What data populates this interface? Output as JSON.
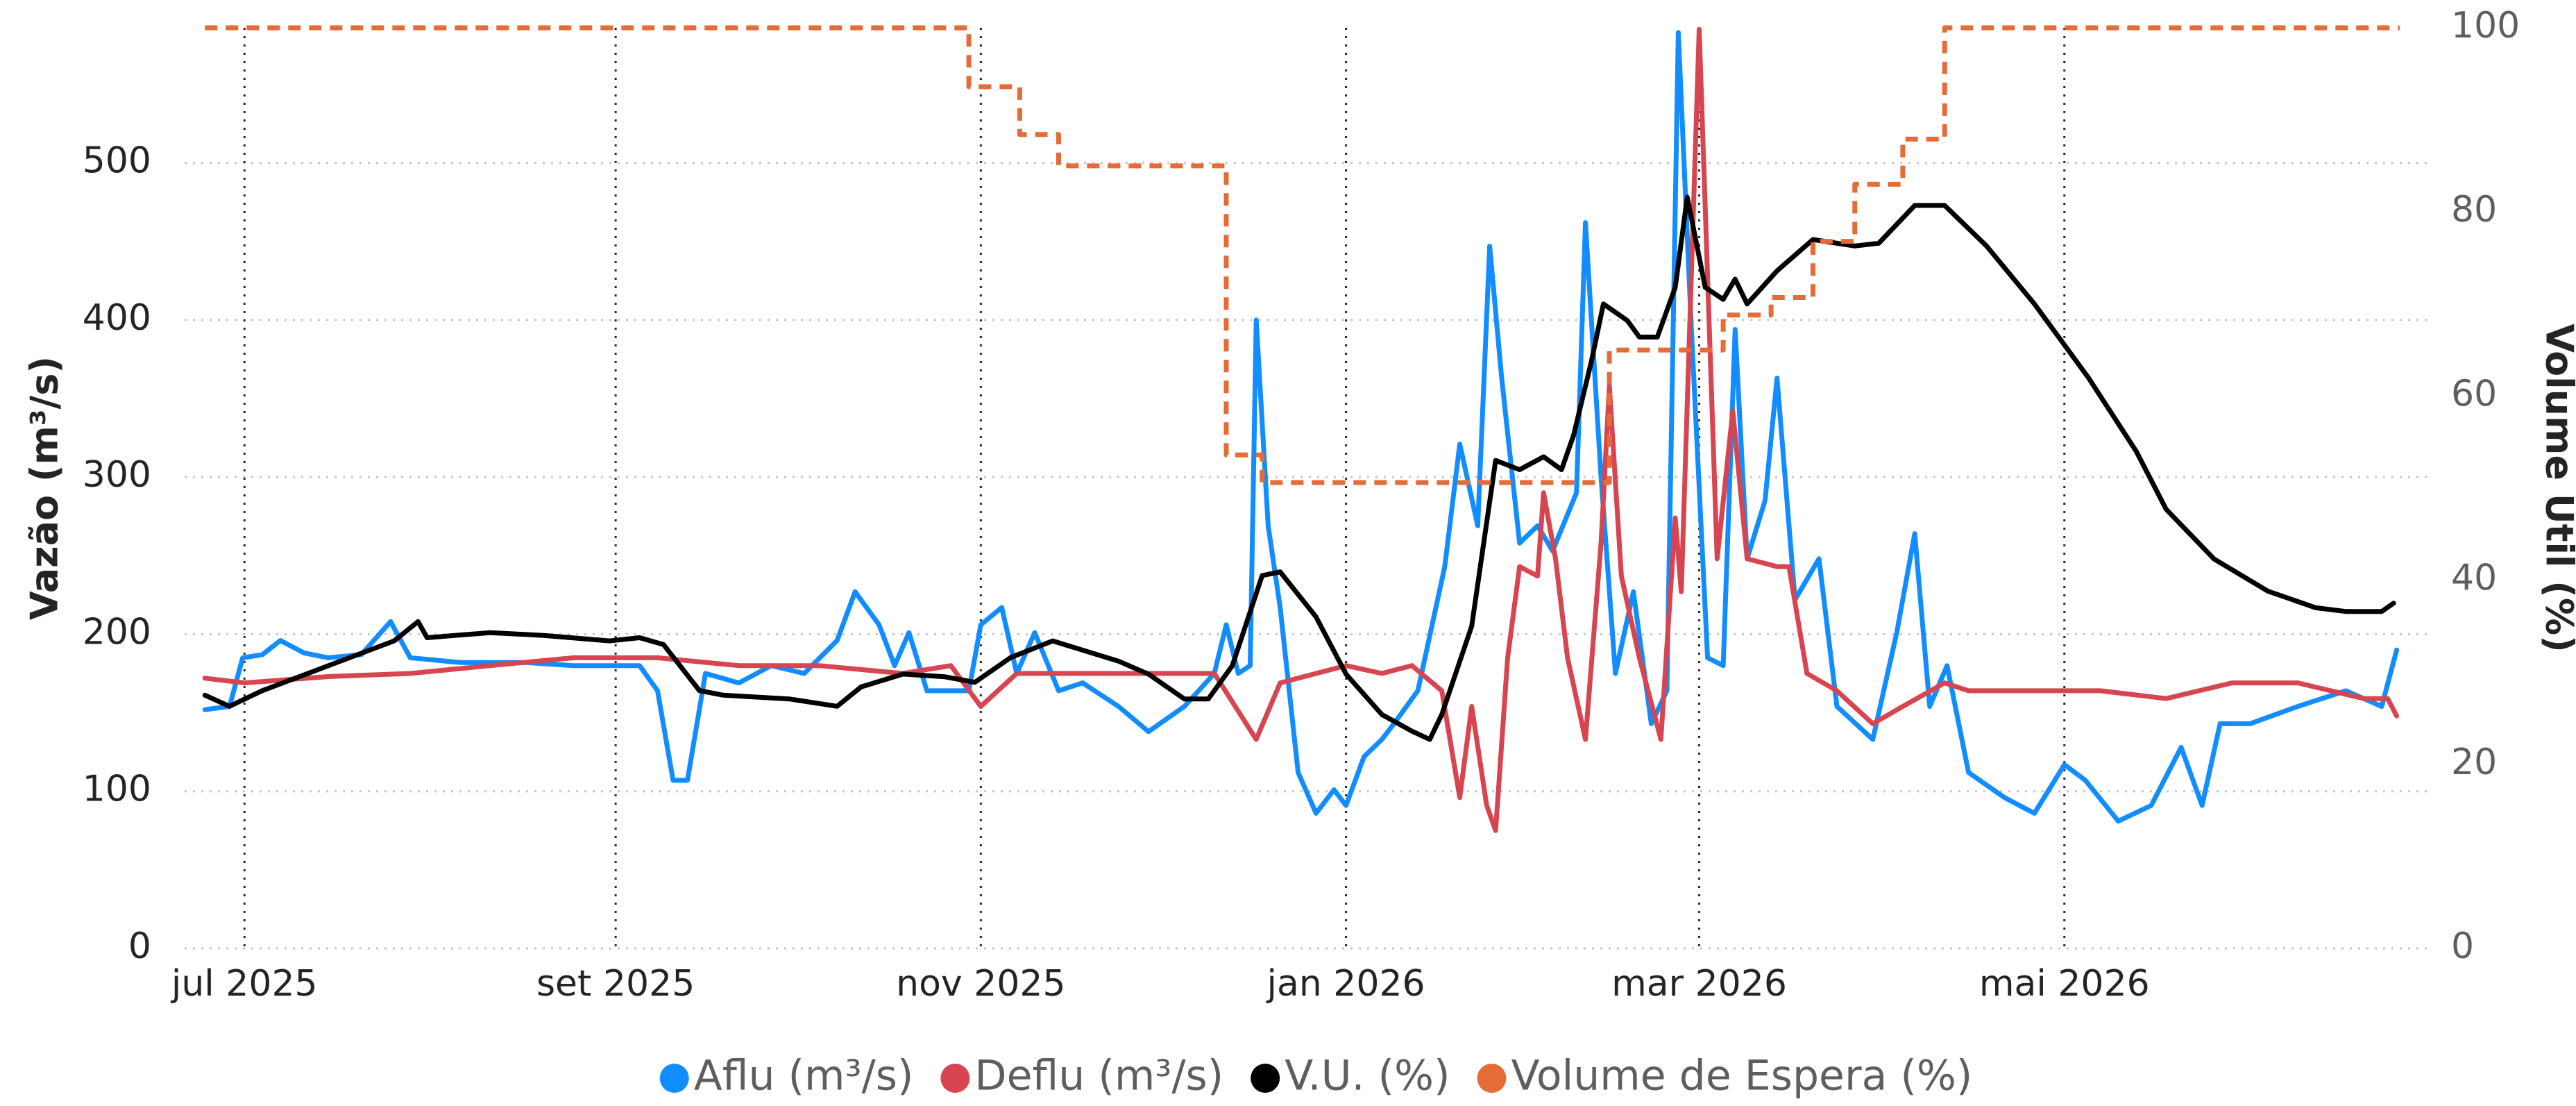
{
  "chart_data": {
    "type": "line",
    "y_label": "Vazão (m³/s)",
    "y2_label": "Volume Útil (%)",
    "xlim": [
      -10,
      365
    ],
    "xticks": [
      {
        "value": 0,
        "label": "jul 2025"
      },
      {
        "value": 62,
        "label": "set 2025"
      },
      {
        "value": 123,
        "label": "nov 2025"
      },
      {
        "value": 184,
        "label": "jan 2026"
      },
      {
        "value": 243,
        "label": "mar 2026"
      },
      {
        "value": 304,
        "label": "mai 2026"
      }
    ],
    "ylim": [
      0,
      586
    ],
    "yticks": [
      0,
      100,
      200,
      300,
      400,
      500
    ],
    "y2lim": [
      0,
      100
    ],
    "y2ticks": [
      0,
      20,
      40,
      60,
      80,
      100
    ],
    "grid": true,
    "legend": "bottom",
    "series": [
      {
        "name": "Aflu (m³/s)",
        "color": "#118DFF",
        "axis": "y",
        "x": [
          -6.6,
          -2.5,
          -0.3,
          3,
          6,
          10,
          14,
          19.5,
          24.4,
          27.7,
          36,
          47,
          55,
          66,
          69,
          71.6,
          74,
          77,
          82.6,
          88,
          93.5,
          99,
          102,
          106,
          108.6,
          111,
          114,
          121,
          123,
          126.5,
          129,
          132,
          136,
          140,
          146,
          151,
          157,
          162,
          164,
          166,
          168,
          169,
          171,
          173,
          176,
          179,
          182,
          184,
          187,
          190,
          192,
          196,
          200.5,
          203,
          206,
          208,
          210,
          213,
          216,
          218.5,
          222.5,
          224,
          226.6,
          229,
          232,
          235,
          237.6,
          239.5,
          241.7,
          244.4,
          247,
          249,
          251,
          254,
          256,
          259,
          263,
          266,
          272,
          276,
          279,
          281.5,
          284.4,
          288,
          294,
          299,
          304,
          307.5,
          313,
          318.5,
          323.5,
          327,
          330,
          335,
          343,
          351,
          357,
          359.5
        ],
        "values": [
          152,
          154,
          185,
          187,
          196,
          188,
          185,
          187,
          208,
          185,
          182,
          182,
          180,
          180,
          164,
          107,
          107,
          175,
          169,
          180,
          175,
          196,
          227,
          206,
          180,
          201,
          164,
          164,
          206,
          217,
          175,
          201,
          164,
          169,
          154,
          138,
          154,
          175,
          206,
          175,
          180,
          400,
          269,
          217,
          112,
          86,
          101,
          91,
          122,
          133,
          143,
          164,
          243,
          321,
          269,
          447,
          363,
          258,
          269,
          253,
          290,
          462,
          300,
          175,
          227,
          143,
          164,
          583,
          394,
          185,
          180,
          394,
          248,
          285,
          363,
          222,
          248,
          154,
          133,
          201,
          264,
          154,
          180,
          112,
          96,
          86,
          117,
          107,
          81,
          91,
          128,
          91,
          143,
          143,
          154,
          164,
          154,
          190
        ]
      },
      {
        "name": "Deflu (m³/s)",
        "color": "#D64550",
        "axis": "y",
        "x": [
          -6.6,
          0,
          14,
          27.7,
          41,
          55,
          69,
          82.6,
          96,
          110,
          118,
          123,
          129,
          137.5,
          151,
          162,
          169,
          173,
          179,
          184,
          190,
          195,
          200,
          203,
          205,
          207.5,
          209,
          211,
          213,
          216,
          217,
          219,
          221,
          224,
          226.6,
          228,
          230,
          233,
          236.6,
          239,
          240,
          243,
          246,
          248.6,
          251,
          256,
          258,
          261,
          266,
          272,
          277,
          284,
          288,
          299,
          310,
          321,
          332,
          343,
          354,
          358,
          359.5
        ],
        "values": [
          172,
          169,
          173,
          175,
          180,
          185,
          185,
          180,
          180,
          175,
          180,
          154,
          175,
          175,
          175,
          175,
          133,
          169,
          175,
          180,
          175,
          180,
          164,
          96,
          154,
          91,
          75,
          185,
          243,
          237,
          290,
          248,
          185,
          133,
          258,
          358,
          237,
          185,
          133,
          274,
          227,
          585,
          248,
          342,
          248,
          243,
          243,
          175,
          164,
          143,
          154,
          169,
          164,
          164,
          164,
          159,
          169,
          169,
          159,
          159,
          148
        ]
      },
      {
        "name": "V.U. (%)",
        "color": "#000000",
        "axis": "y2",
        "x": [
          -6.6,
          -2.5,
          3,
          14,
          25,
          29,
          30.5,
          41,
          50,
          61,
          66,
          70,
          76,
          80,
          91,
          99,
          103,
          110,
          117,
          122,
          128,
          135,
          146,
          151,
          157,
          161,
          165,
          170,
          173,
          179,
          184,
          190,
          195,
          198,
          200,
          205,
          209,
          213,
          217,
          220,
          222,
          225,
          227,
          231,
          233,
          236,
          239,
          241,
          244,
          247,
          249,
          251,
          256,
          262,
          269,
          273,
          279,
          284,
          291,
          299,
          308,
          316,
          321,
          329,
          338,
          346,
          351,
          357,
          359
        ],
        "values": [
          27.5,
          26.3,
          28,
          30.7,
          33.4,
          35.5,
          33.75,
          34.3,
          34,
          33.4,
          33.75,
          33,
          28,
          27.5,
          27.1,
          26.3,
          28.4,
          29.8,
          29.5,
          28.9,
          31.6,
          33.4,
          31.2,
          29.8,
          27.1,
          27.1,
          30.7,
          40.5,
          40.9,
          36,
          29.8,
          25.4,
          23.6,
          22.7,
          25.4,
          35,
          53,
          52,
          53.4,
          52,
          55.7,
          63.8,
          70,
          68.2,
          66.4,
          66.4,
          71.8,
          81.6,
          71.8,
          70.5,
          72.7,
          70,
          73.6,
          77,
          76.3,
          76.6,
          80.7,
          80.7,
          76.3,
          70,
          62,
          54,
          47.7,
          42.3,
          38.8,
          37,
          36.6,
          36.6,
          37.5
        ]
      },
      {
        "name": "Volume de Espera (%)",
        "color": "#E66C37",
        "axis": "y2",
        "line_style": "dashed",
        "x": [
          -6.6,
          121,
          121,
          129.5,
          129.5,
          136,
          136,
          164,
          164,
          170,
          170,
          228,
          228,
          247,
          247,
          255,
          255,
          262,
          262,
          269,
          269,
          277,
          277,
          284,
          284,
          360
        ],
        "values": [
          100,
          100,
          93.6,
          93.6,
          88.4,
          88.4,
          85,
          85,
          53.6,
          53.6,
          50.6,
          50.6,
          65,
          65,
          68.8,
          68.8,
          70.7,
          70.7,
          76.8,
          76.8,
          83,
          83,
          87.9,
          87.9,
          100,
          100
        ]
      }
    ]
  }
}
